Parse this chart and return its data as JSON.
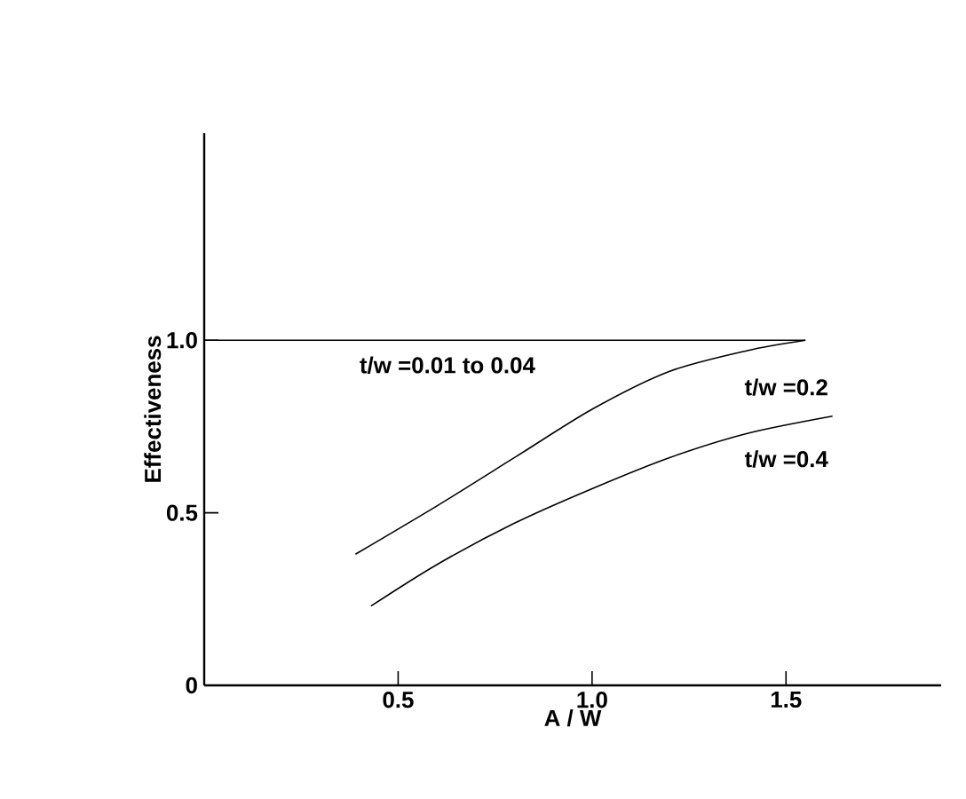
{
  "chart_data": {
    "type": "line",
    "xlabel": "A / W",
    "ylabel": "Effectiveness",
    "xlim": [
      0,
      1.9
    ],
    "ylim": [
      0,
      1.6
    ],
    "xticks": [
      0.5,
      {
        "value": 1,
        "label": "1.0"
      },
      1.5
    ],
    "yticks": [
      0,
      0.5,
      {
        "value": 1,
        "label": "1.0"
      }
    ],
    "grid": false,
    "marker": "none",
    "line_style": "solid",
    "series": [
      {
        "color": "#000000",
        "x": [
          0,
          1.55
        ],
        "values": [
          1.0,
          1.0
        ]
      },
      {
        "color": "#000000",
        "x": [
          0.39,
          0.6,
          0.8,
          1.0,
          1.2,
          1.4,
          1.55
        ],
        "values": [
          0.38,
          0.52,
          0.66,
          0.8,
          0.91,
          0.97,
          1.0
        ]
      },
      {
        "color": "#000000",
        "x": [
          0.43,
          0.6,
          0.8,
          1.0,
          1.2,
          1.4,
          1.62
        ],
        "values": [
          0.23,
          0.35,
          0.47,
          0.57,
          0.66,
          0.73,
          0.78
        ]
      }
    ],
    "annotations": [
      "t/w =0.01 to 0.04",
      "t/w =0.2",
      "t/w =0.4"
    ]
  }
}
